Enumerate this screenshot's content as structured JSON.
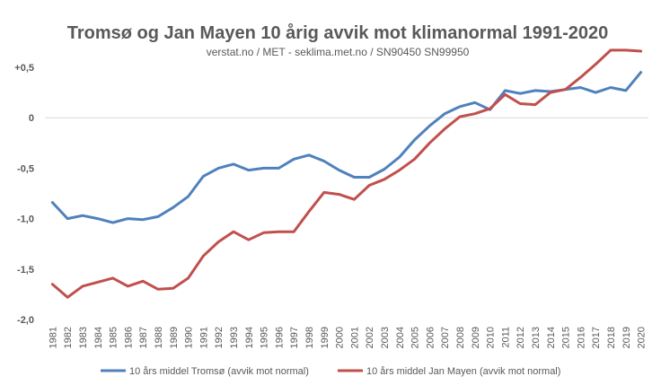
{
  "chart_data": {
    "type": "line",
    "title": "Tromsø og Jan Mayen 10 årig avvik mot klimanormal 1991-2020",
    "subtitle": "verstat.no / MET - seklima.met.no / SN90450 SN99950",
    "xlabel": "",
    "ylabel": "",
    "ylim": [
      -2.0,
      0.5
    ],
    "yticks": [
      0.5,
      0,
      -0.5,
      -1.0,
      -1.5,
      -2.0
    ],
    "ytick_labels": [
      "+0,5",
      "0",
      "-0,5",
      "-1,0",
      "-1,5",
      "-2,0"
    ],
    "grid": false,
    "legend_position": "bottom",
    "x": [
      "1981",
      "1982",
      "1983",
      "1984",
      "1985",
      "1986",
      "1987",
      "1988",
      "1989",
      "1990",
      "1991",
      "1992",
      "1993",
      "1994",
      "1995",
      "1996",
      "1997",
      "1998",
      "1999",
      "2000",
      "2001",
      "2002",
      "2003",
      "2004",
      "2005",
      "2006",
      "2007",
      "2008",
      "2009",
      "2010",
      "2011",
      "2012",
      "2013",
      "2014",
      "2015",
      "2016",
      "2017",
      "2018",
      "2019",
      "2020"
    ],
    "series": [
      {
        "name": "10 års middel Tromsø (avvik mot normal)",
        "color": "#4f81bd",
        "values": [
          -0.84,
          -1.0,
          -0.97,
          -1.0,
          -1.04,
          -1.0,
          -1.01,
          -0.98,
          -0.89,
          -0.78,
          -0.58,
          -0.5,
          -0.46,
          -0.52,
          -0.5,
          -0.5,
          -0.41,
          -0.37,
          -0.43,
          -0.52,
          -0.59,
          -0.59,
          -0.51,
          -0.39,
          -0.22,
          -0.08,
          0.04,
          0.11,
          0.15,
          0.08,
          0.27,
          0.24,
          0.27,
          0.26,
          0.28,
          0.3,
          0.25,
          0.3,
          0.27,
          0.45
        ]
      },
      {
        "name": "10 års middel Jan Mayen (avvik mot normal)",
        "color": "#c0504d",
        "values": [
          -1.65,
          -1.78,
          -1.67,
          -1.63,
          -1.59,
          -1.67,
          -1.62,
          -1.7,
          -1.69,
          -1.59,
          -1.37,
          -1.23,
          -1.13,
          -1.21,
          -1.14,
          -1.13,
          -1.13,
          -0.93,
          -0.74,
          -0.76,
          -0.81,
          -0.67,
          -0.61,
          -0.52,
          -0.41,
          -0.25,
          -0.11,
          0.01,
          0.04,
          0.09,
          0.23,
          0.14,
          0.13,
          0.25,
          0.28,
          0.4,
          0.53,
          0.67,
          0.67,
          0.66
        ]
      }
    ]
  }
}
